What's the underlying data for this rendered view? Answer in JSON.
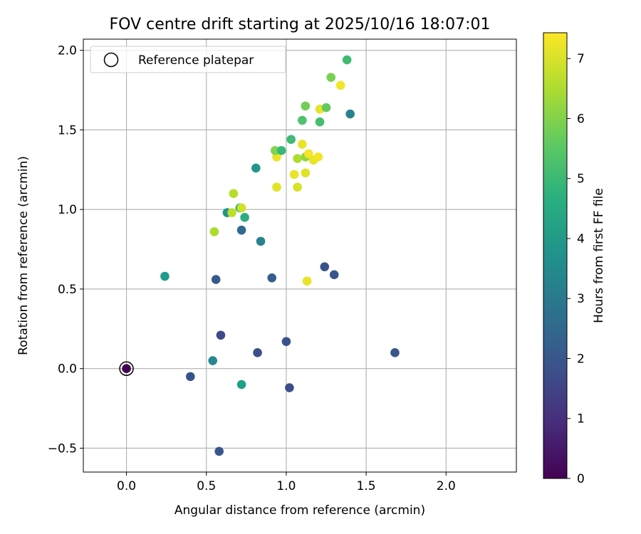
{
  "chart_data": {
    "type": "scatter",
    "title": "FOV centre drift starting at 2025/10/16 18:07:01",
    "xlabel": "Angular distance from reference (arcmin)",
    "ylabel": "Rotation from reference (arcmin)",
    "xlim": [
      -0.27,
      2.44
    ],
    "ylim": [
      -0.65,
      2.07
    ],
    "xticks": [
      0.0,
      0.5,
      1.0,
      1.5,
      2.0
    ],
    "yticks": [
      -0.5,
      0.0,
      0.5,
      1.0,
      1.5,
      2.0
    ],
    "xtick_labels": [
      "0.0",
      "0.5",
      "1.0",
      "1.5",
      "2.0"
    ],
    "ytick_labels": [
      "−0.5",
      "0.0",
      "0.5",
      "1.0",
      "1.5",
      "2.0"
    ],
    "grid": true,
    "legend": {
      "position": "top-left",
      "entries": [
        "Reference platepar"
      ]
    },
    "reference_point": {
      "x": 0.0,
      "y": 0.0,
      "hours": 0.0
    },
    "colorbar": {
      "label": "Hours from first FF file",
      "range": [
        0,
        7.43
      ],
      "ticks": [
        0,
        1,
        2,
        3,
        4,
        5,
        6,
        7
      ],
      "tick_labels": [
        "0",
        "1",
        "2",
        "3",
        "4",
        "5",
        "6",
        "7"
      ],
      "colormap": "viridis"
    },
    "points": [
      {
        "x": 0.0,
        "y": 0.0,
        "hours": 0.0
      },
      {
        "x": 0.4,
        "y": -0.05,
        "hours": 1.9
      },
      {
        "x": 0.58,
        "y": -0.52,
        "hours": 2.0
      },
      {
        "x": 0.54,
        "y": 0.05,
        "hours": 3.5
      },
      {
        "x": 0.72,
        "y": -0.1,
        "hours": 4.2
      },
      {
        "x": 0.59,
        "y": 0.21,
        "hours": 1.7
      },
      {
        "x": 0.82,
        "y": 0.1,
        "hours": 1.8
      },
      {
        "x": 1.0,
        "y": 0.17,
        "hours": 1.9
      },
      {
        "x": 1.02,
        "y": -0.12,
        "hours": 1.8
      },
      {
        "x": 1.68,
        "y": 0.1,
        "hours": 2.0
      },
      {
        "x": 0.24,
        "y": 0.58,
        "hours": 4.0
      },
      {
        "x": 0.56,
        "y": 0.56,
        "hours": 2.1
      },
      {
        "x": 0.91,
        "y": 0.57,
        "hours": 2.2
      },
      {
        "x": 1.24,
        "y": 0.64,
        "hours": 1.9
      },
      {
        "x": 1.3,
        "y": 0.59,
        "hours": 2.0
      },
      {
        "x": 1.13,
        "y": 0.55,
        "hours": 7.2
      },
      {
        "x": 0.72,
        "y": 0.87,
        "hours": 2.6
      },
      {
        "x": 0.84,
        "y": 0.8,
        "hours": 3.3
      },
      {
        "x": 0.55,
        "y": 0.86,
        "hours": 6.5
      },
      {
        "x": 0.63,
        "y": 0.98,
        "hours": 3.8
      },
      {
        "x": 0.66,
        "y": 0.98,
        "hours": 6.7
      },
      {
        "x": 0.71,
        "y": 1.01,
        "hours": 4.9
      },
      {
        "x": 0.72,
        "y": 1.01,
        "hours": 6.9
      },
      {
        "x": 0.74,
        "y": 0.95,
        "hours": 4.6
      },
      {
        "x": 0.67,
        "y": 1.1,
        "hours": 6.6
      },
      {
        "x": 0.81,
        "y": 1.26,
        "hours": 3.9
      },
      {
        "x": 0.94,
        "y": 1.14,
        "hours": 7.1
      },
      {
        "x": 0.94,
        "y": 1.33,
        "hours": 7.2
      },
      {
        "x": 0.93,
        "y": 1.37,
        "hours": 6.0
      },
      {
        "x": 0.97,
        "y": 1.37,
        "hours": 5.0
      },
      {
        "x": 1.03,
        "y": 1.44,
        "hours": 5.1
      },
      {
        "x": 1.05,
        "y": 1.22,
        "hours": 7.2
      },
      {
        "x": 1.07,
        "y": 1.14,
        "hours": 7.0
      },
      {
        "x": 1.07,
        "y": 1.32,
        "hours": 6.5
      },
      {
        "x": 1.1,
        "y": 1.41,
        "hours": 7.2
      },
      {
        "x": 1.12,
        "y": 1.33,
        "hours": 6.2
      },
      {
        "x": 1.12,
        "y": 1.23,
        "hours": 7.1
      },
      {
        "x": 1.14,
        "y": 1.35,
        "hours": 7.3
      },
      {
        "x": 1.17,
        "y": 1.31,
        "hours": 7.2
      },
      {
        "x": 1.2,
        "y": 1.33,
        "hours": 7.3
      },
      {
        "x": 1.1,
        "y": 1.56,
        "hours": 5.3
      },
      {
        "x": 1.12,
        "y": 1.65,
        "hours": 5.8
      },
      {
        "x": 1.21,
        "y": 1.63,
        "hours": 7.2
      },
      {
        "x": 1.21,
        "y": 1.55,
        "hours": 5.2
      },
      {
        "x": 1.25,
        "y": 1.64,
        "hours": 5.6
      },
      {
        "x": 1.28,
        "y": 1.83,
        "hours": 5.9
      },
      {
        "x": 1.34,
        "y": 1.78,
        "hours": 7.3
      },
      {
        "x": 1.38,
        "y": 1.94,
        "hours": 5.1
      },
      {
        "x": 1.4,
        "y": 1.6,
        "hours": 3.3
      }
    ]
  }
}
